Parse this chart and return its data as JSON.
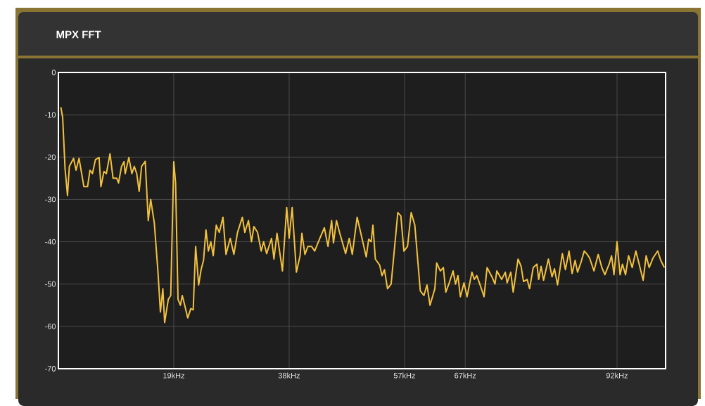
{
  "chart_data": {
    "type": "line",
    "title": "MPX FFT",
    "x": [
      0.4,
      0.7,
      1.1,
      1.5,
      1.8,
      2.5,
      2.9,
      3.4,
      4.2,
      4.8,
      5.2,
      5.6,
      6.1,
      6.7,
      7.0,
      7.5,
      7.9,
      8.5,
      9.0,
      9.6,
      9.9,
      10.4,
      10.8,
      11.0,
      11.6,
      12.1,
      12.5,
      12.9,
      13.3,
      13.7,
      14.3,
      14.8,
      15.2,
      15.8,
      16.4,
      16.8,
      17.2,
      17.5,
      18.1,
      18.5,
      19.0,
      19.3,
      19.7,
      20.1,
      20.4,
      20.8,
      21.3,
      21.8,
      22.2,
      22.6,
      23.1,
      23.5,
      23.9,
      24.3,
      24.7,
      25.1,
      25.5,
      26.0,
      26.5,
      27.1,
      27.6,
      28.3,
      28.9,
      29.5,
      30.3,
      30.7,
      31.3,
      31.8,
      32.2,
      32.8,
      33.4,
      33.8,
      34.3,
      35.1,
      35.5,
      36.0,
      36.9,
      37.6,
      38.0,
      38.5,
      39.2,
      39.8,
      40.1,
      40.6,
      41.1,
      41.7,
      42.2,
      43.0,
      43.8,
      44.4,
      45.0,
      45.3,
      45.8,
      46.3,
      47.3,
      47.9,
      48.4,
      49.2,
      50.0,
      50.7,
      51.1,
      51.5,
      51.8,
      52.2,
      52.9,
      53.3,
      53.7,
      54.2,
      54.8,
      55.9,
      56.4,
      56.9,
      57.5,
      58.1,
      58.7,
      59.6,
      60.2,
      60.7,
      61.2,
      62.0,
      62.3,
      62.9,
      63.4,
      63.8,
      64.3,
      65.0,
      65.4,
      65.8,
      66.2,
      66.8,
      67.3,
      68.1,
      68.5,
      68.9,
      69.4,
      70.1,
      70.6,
      71.4,
      71.9,
      72.2,
      73.0,
      73.6,
      73.9,
      74.5,
      74.9,
      75.7,
      76.2,
      76.6,
      77.2,
      77.6,
      78.2,
      78.8,
      79.1,
      79.5,
      79.9,
      80.7,
      81.3,
      81.7,
      82.2,
      83.0,
      83.5,
      84.1,
      84.6,
      85.1,
      85.5,
      86.1,
      86.6,
      87.1,
      87.5,
      88.2,
      88.9,
      89.5,
      90.0,
      90.7,
      91.1,
      91.5,
      92.0,
      92.5,
      92.9,
      93.4,
      93.9,
      94.5,
      95.1,
      95.6,
      96.3,
      96.8,
      97.3,
      97.9,
      98.7,
      99.2,
      99.8
    ],
    "series": [
      {
        "color": "#f2c13d",
        "values": [
          -8.2,
          -10.6,
          -22.8,
          -29.1,
          -22.2,
          -20.3,
          -23.1,
          -20.3,
          -27.0,
          -27.0,
          -23.1,
          -23.9,
          -20.6,
          -20.1,
          -27.0,
          -23.4,
          -23.9,
          -19.2,
          -25.0,
          -25.0,
          -26.1,
          -22.2,
          -21.1,
          -23.9,
          -20.1,
          -23.9,
          -22.2,
          -23.9,
          -28.1,
          -22.2,
          -21.0,
          -35.0,
          -30.0,
          -35.6,
          -47.2,
          -56.6,
          -51.1,
          -59.1,
          -53.6,
          -52.7,
          -21.1,
          -26.1,
          -53.6,
          -55.0,
          -52.7,
          -55.0,
          -58.0,
          -55.8,
          -56.1,
          -41.1,
          -50.2,
          -46.6,
          -44.4,
          -37.2,
          -42.2,
          -40.0,
          -43.3,
          -36.1,
          -37.8,
          -34.2,
          -43.0,
          -39.2,
          -43.0,
          -37.8,
          -34.2,
          -37.8,
          -35.0,
          -40.0,
          -36.4,
          -37.8,
          -42.2,
          -40.0,
          -42.8,
          -39.2,
          -44.1,
          -38.0,
          -46.9,
          -31.9,
          -39.2,
          -31.9,
          -47.2,
          -43.3,
          -38.0,
          -43.0,
          -41.1,
          -41.1,
          -42.2,
          -39.4,
          -36.7,
          -41.1,
          -35.0,
          -40.3,
          -35.0,
          -37.8,
          -42.8,
          -39.2,
          -43.0,
          -34.2,
          -39.2,
          -43.6,
          -39.4,
          -40.0,
          -36.1,
          -44.1,
          -45.5,
          -48.0,
          -46.6,
          -51.1,
          -50.0,
          -33.1,
          -33.9,
          -42.2,
          -41.1,
          -33.1,
          -36.1,
          -51.6,
          -52.7,
          -50.2,
          -55.0,
          -51.1,
          -45.0,
          -46.9,
          -46.1,
          -51.9,
          -50.0,
          -46.9,
          -50.0,
          -48.0,
          -53.0,
          -49.7,
          -53.0,
          -47.2,
          -48.9,
          -48.0,
          -50.0,
          -53.0,
          -46.1,
          -48.3,
          -50.0,
          -46.9,
          -48.9,
          -47.2,
          -49.7,
          -47.2,
          -51.9,
          -44.1,
          -45.8,
          -49.4,
          -48.9,
          -51.1,
          -46.1,
          -45.3,
          -48.9,
          -45.8,
          -49.1,
          -44.1,
          -48.3,
          -46.4,
          -50.2,
          -42.8,
          -46.6,
          -42.2,
          -47.5,
          -44.4,
          -47.2,
          -44.7,
          -42.2,
          -43.0,
          -43.9,
          -46.9,
          -43.0,
          -46.1,
          -47.8,
          -45.3,
          -43.3,
          -47.8,
          -40.0,
          -47.8,
          -45.3,
          -47.8,
          -43.3,
          -46.1,
          -42.2,
          -45.0,
          -49.1,
          -43.3,
          -46.1,
          -43.9,
          -42.2,
          -44.4,
          -46.1
        ]
      }
    ],
    "xlim": [
      0,
      100
    ],
    "xticks": [
      {
        "value": 19,
        "label": "19kHz"
      },
      {
        "value": 38,
        "label": "38kHz"
      },
      {
        "value": 57,
        "label": "57kHz"
      },
      {
        "value": 67,
        "label": "67kHz"
      },
      {
        "value": 92,
        "label": "92kHz"
      }
    ],
    "ylim": [
      -70,
      0
    ],
    "yticks": [
      -70,
      -60,
      -50,
      -40,
      -30,
      -20,
      -10,
      0
    ],
    "grid": true
  }
}
